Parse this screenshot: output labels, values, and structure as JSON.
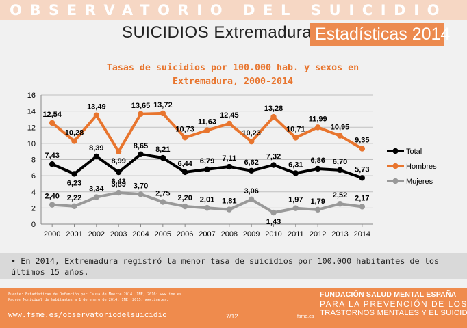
{
  "header": {
    "band_title": "OBSERVATORIO DEL SUICIDIO",
    "subtitle": "SUICIDIOS Extremadura",
    "highlight": "Estadísticas 2014"
  },
  "chart_data": {
    "type": "line",
    "title_line1": "Tasas de suicidios por 100.000 hab. y sexos en",
    "title_line2": "Extremadura, 2000-2014",
    "categories": [
      "2000",
      "2001",
      "2002",
      "2003",
      "2004",
      "2005",
      "2006",
      "2007",
      "2008",
      "2009",
      "2010",
      "2011",
      "2012",
      "2013",
      "2014"
    ],
    "ylim": [
      0,
      16
    ],
    "yticks": [
      "0",
      "2",
      "4",
      "6",
      "8",
      "10",
      "12",
      "14",
      "16"
    ],
    "grid": true,
    "legend_position": "right",
    "series": [
      {
        "name": "Total",
        "color": "#000000",
        "values": [
          7.43,
          6.23,
          8.39,
          6.43,
          8.65,
          8.21,
          6.44,
          6.79,
          7.11,
          6.62,
          7.32,
          6.31,
          6.86,
          6.7,
          5.73
        ],
        "labels": [
          "7,43",
          "6,23",
          "8,39",
          "6,43",
          "8,65",
          "8,21",
          "6,44",
          "6,79",
          "7,11",
          "6,62",
          "7,32",
          "6,31",
          "6,86",
          "6,70",
          "5,73"
        ]
      },
      {
        "name": "Hombres",
        "color": "#e8752e",
        "values": [
          12.54,
          10.28,
          13.49,
          8.99,
          13.65,
          13.72,
          10.73,
          11.63,
          12.45,
          10.23,
          13.28,
          10.71,
          11.99,
          10.95,
          9.35
        ],
        "labels": [
          "12,54",
          "10,28",
          "13,49",
          "8,99",
          "13,65",
          "13,72",
          "10,73",
          "11,63",
          "12,45",
          "10,23",
          "13,28",
          "10,71",
          "11,99",
          "10,95",
          "9,35"
        ]
      },
      {
        "name": "Mujeres",
        "color": "#999999",
        "values": [
          2.4,
          2.22,
          3.34,
          3.89,
          3.7,
          2.75,
          2.2,
          2.01,
          1.81,
          3.06,
          1.43,
          1.97,
          1.79,
          2.52,
          2.17
        ],
        "labels": [
          "2,40",
          "2,22",
          "3,34",
          "3,89",
          "3,70",
          "2,75",
          "2,20",
          "2,01",
          "1,81",
          "3,06",
          "1,43",
          "1,97",
          "1,79",
          "2,52",
          "2,17"
        ]
      }
    ]
  },
  "bullet": "En 2014, Extremadura registró la menor tasa de suicidios por 100.000 habitantes de los últimos 15 años.",
  "footer": {
    "source_line1": "Fuente: Estadísticas de Defunción por Causa de Muerte 2014. INE, 2016: www.ine.es.",
    "source_line2": "Padrón Municipal de habitantes a 1 de enero de 2014. INE, 2015: www.ine.es.",
    "url": "www.fsme.es/observatoriodelsuicidio",
    "page": "7/12",
    "logo_text": "fsme.es",
    "org_line1": "FUNDACIÓN SALUD MENTAL ESPAÑA",
    "org_line2": "PARA LA PREVENCIÓN DE LOS",
    "org_line3": "TRASTORNOS MENTALES Y EL SUICIDIO"
  }
}
